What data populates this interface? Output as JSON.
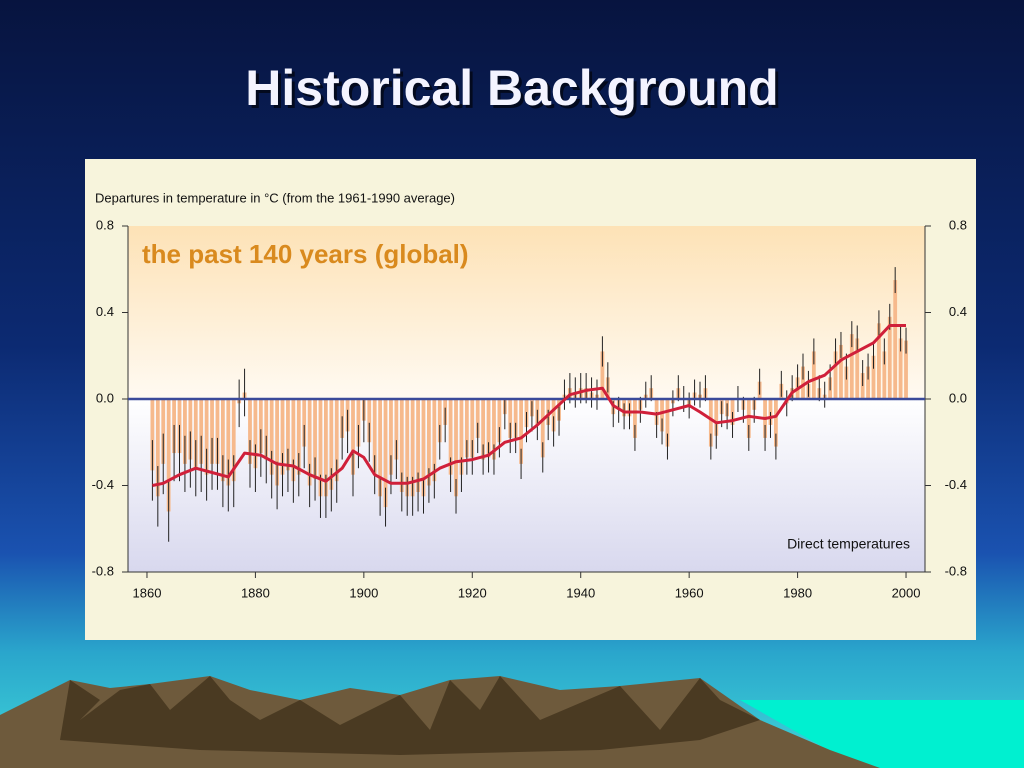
{
  "title": "Historical Background",
  "chart_data": {
    "type": "bar",
    "ylabel": "Departures in temperature in °C (from the 1961-1990 average)",
    "annotation": "the past 140 years (global)",
    "note": "Direct temperatures",
    "color": "#f6b98c",
    "error_color": "#222222",
    "x": [
      1861,
      1862,
      1863,
      1864,
      1865,
      1866,
      1867,
      1868,
      1869,
      1870,
      1871,
      1872,
      1873,
      1874,
      1875,
      1876,
      1877,
      1878,
      1879,
      1880,
      1881,
      1882,
      1883,
      1884,
      1885,
      1886,
      1887,
      1888,
      1889,
      1890,
      1891,
      1892,
      1893,
      1894,
      1895,
      1896,
      1897,
      1898,
      1899,
      1900,
      1901,
      1902,
      1903,
      1904,
      1905,
      1906,
      1907,
      1908,
      1909,
      1910,
      1911,
      1912,
      1913,
      1914,
      1915,
      1916,
      1917,
      1918,
      1919,
      1920,
      1921,
      1922,
      1923,
      1924,
      1925,
      1926,
      1927,
      1928,
      1929,
      1930,
      1931,
      1932,
      1933,
      1934,
      1935,
      1936,
      1937,
      1938,
      1939,
      1940,
      1941,
      1942,
      1943,
      1944,
      1945,
      1946,
      1947,
      1948,
      1949,
      1950,
      1951,
      1952,
      1953,
      1954,
      1955,
      1956,
      1957,
      1958,
      1959,
      1960,
      1961,
      1962,
      1963,
      1964,
      1965,
      1966,
      1967,
      1968,
      1969,
      1970,
      1971,
      1972,
      1973,
      1974,
      1975,
      1976,
      1977,
      1978,
      1979,
      1980,
      1981,
      1982,
      1983,
      1984,
      1985,
      1986,
      1987,
      1988,
      1989,
      1990,
      1991,
      1992,
      1993,
      1994,
      1995,
      1996,
      1997,
      1998,
      1999,
      2000
    ],
    "values": [
      -0.33,
      -0.45,
      -0.3,
      -0.52,
      -0.25,
      -0.25,
      -0.3,
      -0.28,
      -0.32,
      -0.3,
      -0.35,
      -0.3,
      -0.3,
      -0.38,
      -0.4,
      -0.38,
      -0.02,
      0.03,
      -0.3,
      -0.32,
      -0.25,
      -0.28,
      -0.35,
      -0.4,
      -0.35,
      -0.33,
      -0.38,
      -0.35,
      -0.22,
      -0.4,
      -0.37,
      -0.45,
      -0.45,
      -0.42,
      -0.38,
      -0.18,
      -0.15,
      -0.35,
      -0.22,
      -0.1,
      -0.2,
      -0.35,
      -0.45,
      -0.5,
      -0.35,
      -0.28,
      -0.43,
      -0.45,
      -0.45,
      -0.43,
      -0.45,
      -0.4,
      -0.38,
      -0.2,
      -0.12,
      -0.35,
      -0.45,
      -0.35,
      -0.27,
      -0.27,
      -0.18,
      -0.28,
      -0.27,
      -0.28,
      -0.2,
      -0.07,
      -0.18,
      -0.18,
      -0.3,
      -0.13,
      -0.08,
      -0.12,
      -0.27,
      -0.12,
      -0.15,
      -0.1,
      0.02,
      0.05,
      0.03,
      0.05,
      0.05,
      0.03,
      0.02,
      0.22,
      0.1,
      -0.07,
      -0.05,
      -0.08,
      -0.08,
      -0.18,
      -0.05,
      0.02,
      0.05,
      -0.12,
      -0.15,
      -0.22,
      -0.02,
      0.05,
      0.0,
      -0.03,
      0.03,
      0.02,
      0.05,
      -0.22,
      -0.17,
      -0.07,
      -0.08,
      -0.12,
      0.0,
      -0.05,
      -0.18,
      -0.05,
      0.08,
      -0.18,
      -0.12,
      -0.22,
      0.07,
      -0.02,
      0.05,
      0.1,
      0.15,
      0.07,
      0.22,
      0.05,
      0.02,
      0.1,
      0.22,
      0.25,
      0.15,
      0.3,
      0.28,
      0.12,
      0.15,
      0.2,
      0.35,
      0.22,
      0.38,
      0.55,
      0.28,
      0.27
    ],
    "errors": [
      0.14,
      0.14,
      0.14,
      0.14,
      0.13,
      0.13,
      0.13,
      0.13,
      0.13,
      0.13,
      0.12,
      0.12,
      0.12,
      0.12,
      0.12,
      0.12,
      0.11,
      0.11,
      0.11,
      0.11,
      0.11,
      0.11,
      0.11,
      0.11,
      0.1,
      0.1,
      0.1,
      0.1,
      0.1,
      0.1,
      0.1,
      0.1,
      0.1,
      0.1,
      0.1,
      0.1,
      0.1,
      0.1,
      0.1,
      0.1,
      0.09,
      0.09,
      0.09,
      0.09,
      0.09,
      0.09,
      0.09,
      0.09,
      0.09,
      0.09,
      0.08,
      0.08,
      0.08,
      0.08,
      0.08,
      0.08,
      0.08,
      0.08,
      0.08,
      0.08,
      0.07,
      0.07,
      0.07,
      0.07,
      0.07,
      0.07,
      0.07,
      0.07,
      0.07,
      0.07,
      0.07,
      0.07,
      0.07,
      0.07,
      0.07,
      0.07,
      0.07,
      0.07,
      0.07,
      0.07,
      0.07,
      0.07,
      0.07,
      0.07,
      0.07,
      0.06,
      0.06,
      0.06,
      0.06,
      0.06,
      0.06,
      0.06,
      0.06,
      0.06,
      0.06,
      0.06,
      0.06,
      0.06,
      0.06,
      0.06,
      0.06,
      0.06,
      0.06,
      0.06,
      0.06,
      0.06,
      0.06,
      0.06,
      0.06,
      0.06,
      0.06,
      0.06,
      0.06,
      0.06,
      0.06,
      0.06,
      0.06,
      0.06,
      0.06,
      0.06,
      0.06,
      0.06,
      0.06,
      0.06,
      0.06,
      0.06,
      0.06,
      0.06,
      0.06,
      0.06,
      0.06,
      0.06,
      0.06,
      0.06,
      0.06,
      0.06,
      0.06,
      0.06,
      0.06,
      0.06
    ],
    "smooth": {
      "color": "#d0203a",
      "x": [
        1861,
        1863,
        1866,
        1869,
        1872,
        1875,
        1878,
        1881,
        1884,
        1887,
        1890,
        1893,
        1896,
        1898,
        1900,
        1902,
        1905,
        1908,
        1911,
        1914,
        1917,
        1920,
        1923,
        1926,
        1929,
        1932,
        1935,
        1938,
        1941,
        1944,
        1946,
        1948,
        1951,
        1954,
        1957,
        1960,
        1962,
        1965,
        1968,
        1971,
        1974,
        1976,
        1979,
        1982,
        1985,
        1988,
        1991,
        1994,
        1997,
        2000
      ],
      "values": [
        -0.4,
        -0.39,
        -0.35,
        -0.32,
        -0.34,
        -0.36,
        -0.25,
        -0.26,
        -0.3,
        -0.31,
        -0.35,
        -0.38,
        -0.32,
        -0.24,
        -0.27,
        -0.35,
        -0.39,
        -0.39,
        -0.37,
        -0.32,
        -0.29,
        -0.28,
        -0.26,
        -0.2,
        -0.18,
        -0.12,
        -0.05,
        0.02,
        0.04,
        0.05,
        -0.03,
        -0.06,
        -0.06,
        -0.07,
        -0.05,
        -0.03,
        -0.06,
        -0.11,
        -0.1,
        -0.08,
        -0.09,
        -0.08,
        0.03,
        0.08,
        0.11,
        0.18,
        0.22,
        0.26,
        0.34,
        0.34
      ]
    },
    "xlim": [
      1856.5,
      2003.5
    ],
    "xticks": [
      1860,
      1880,
      1900,
      1920,
      1940,
      1960,
      1980,
      2000
    ],
    "ylim": [
      -0.8,
      0.8
    ],
    "yticks": [
      -0.8,
      -0.4,
      {
        "value": 0,
        "label": "0.0"
      },
      0.4,
      0.8
    ],
    "y2lim": [
      -0.8,
      0.8
    ],
    "y2ticks": [
      -0.8,
      -0.4,
      {
        "value": 0,
        "label": "0.0"
      },
      0.4,
      0.8
    ]
  }
}
